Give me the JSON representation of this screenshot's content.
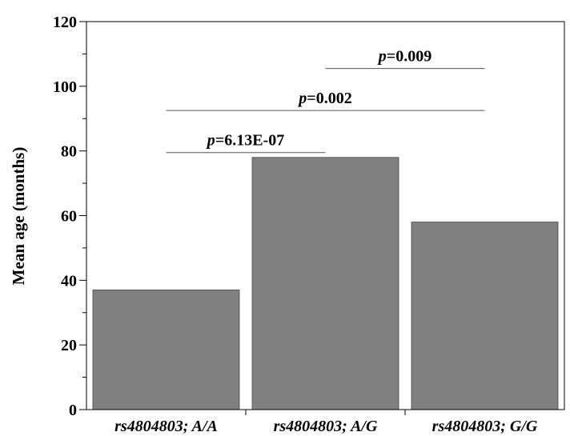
{
  "chart_data": {
    "type": "bar",
    "categories": [
      "rs4804803; A/A",
      "rs4804803; A/G",
      "rs4804803; G/G"
    ],
    "values": [
      37,
      78,
      58
    ],
    "title": "",
    "xlabel": "",
    "ylabel": "Mean age (months)",
    "ylim": [
      0,
      120
    ],
    "yticks": [
      0,
      20,
      40,
      60,
      80,
      100,
      120
    ],
    "bar_color": "#808080",
    "grid": false,
    "legend": "none",
    "annotations": [
      {
        "text_italic": "p",
        "text_rest": "=6.13E-07",
        "from": 0,
        "to": 1,
        "value": 79.5
      },
      {
        "text_italic": "p",
        "text_rest": "=0.002",
        "from": 0,
        "to": 2,
        "value": 92.5
      },
      {
        "text_italic": "p",
        "text_rest": "=0.009",
        "from": 1,
        "to": 2,
        "value": 105.5
      }
    ]
  }
}
